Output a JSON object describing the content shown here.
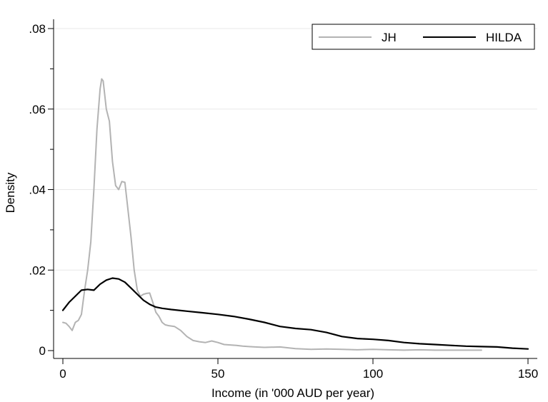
{
  "chart_data": {
    "type": "line",
    "xlabel": "Income (in '000 AUD per year)",
    "ylabel": "Density",
    "xlim": [
      0,
      150
    ],
    "ylim": [
      0,
      0.08
    ],
    "x_ticks": [
      0,
      50,
      100,
      150
    ],
    "x_tick_labels": [
      "0",
      "50",
      "100",
      "150"
    ],
    "y_ticks": [
      0,
      0.02,
      0.04,
      0.06,
      0.08
    ],
    "y_tick_labels": [
      "0",
      ".02",
      ".04",
      ".06",
      ".08"
    ],
    "y_minor_ticks": [
      0.01,
      0.03,
      0.05,
      0.07
    ],
    "grid": "horizontal",
    "legend_position": "top-right",
    "series": [
      {
        "name": "JH",
        "color": "#b3b3b3",
        "x": [
          0,
          1,
          2,
          3,
          4,
          5,
          6,
          7,
          8,
          9,
          10,
          11,
          12,
          12.5,
          13,
          14,
          15,
          16,
          17,
          18,
          19,
          20,
          21,
          22,
          23,
          24,
          25,
          26,
          27,
          28,
          29,
          30,
          31,
          32,
          33,
          34,
          36,
          38,
          40,
          42,
          44,
          46,
          48,
          50,
          52,
          54,
          56,
          58,
          60,
          62,
          65,
          70,
          75,
          80,
          85,
          90,
          95,
          100,
          105,
          110,
          115,
          120,
          125,
          130,
          135
        ],
        "y": [
          0.007,
          0.0068,
          0.006,
          0.005,
          0.007,
          0.0075,
          0.009,
          0.015,
          0.02,
          0.027,
          0.04,
          0.055,
          0.065,
          0.0675,
          0.067,
          0.06,
          0.057,
          0.047,
          0.041,
          0.04,
          0.042,
          0.0418,
          0.035,
          0.028,
          0.02,
          0.015,
          0.0135,
          0.014,
          0.0142,
          0.0143,
          0.012,
          0.0095,
          0.0085,
          0.007,
          0.0064,
          0.0062,
          0.006,
          0.005,
          0.0035,
          0.0025,
          0.0022,
          0.002,
          0.0024,
          0.002,
          0.0015,
          0.0014,
          0.0013,
          0.0011,
          0.001,
          0.0009,
          0.0008,
          0.0009,
          0.0005,
          0.0003,
          0.0004,
          0.0003,
          0.0002,
          0.0003,
          0.0002,
          0.0001,
          0.0002,
          0.0001,
          0.0001,
          0.0001,
          0.0001
        ]
      },
      {
        "name": "HILDA",
        "color": "#000000",
        "x": [
          0,
          2,
          4,
          6,
          8,
          10,
          12,
          14,
          16,
          18,
          20,
          22,
          24,
          26,
          28,
          30,
          32,
          35,
          40,
          45,
          50,
          55,
          60,
          65,
          70,
          75,
          80,
          85,
          90,
          95,
          100,
          105,
          110,
          115,
          120,
          125,
          130,
          135,
          140,
          145,
          150
        ],
        "y": [
          0.01,
          0.012,
          0.0135,
          0.015,
          0.0152,
          0.015,
          0.0165,
          0.0175,
          0.018,
          0.0178,
          0.017,
          0.0155,
          0.014,
          0.0125,
          0.0115,
          0.0108,
          0.0105,
          0.0102,
          0.0098,
          0.0094,
          0.009,
          0.0085,
          0.0078,
          0.007,
          0.006,
          0.0055,
          0.0052,
          0.0045,
          0.0035,
          0.003,
          0.0028,
          0.0025,
          0.002,
          0.0017,
          0.0015,
          0.0013,
          0.0011,
          0.001,
          0.0009,
          0.0006,
          0.0004
        ]
      }
    ]
  }
}
